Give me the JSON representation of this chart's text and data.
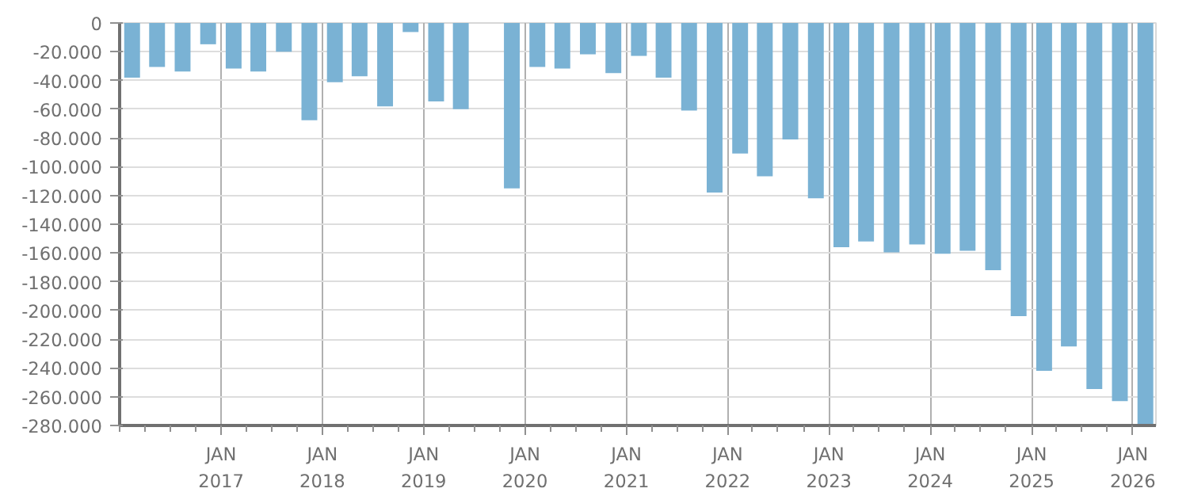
{
  "chart_data": {
    "type": "bar",
    "x": [
      "2016-02-15",
      "2016-05-15",
      "2016-08-15",
      "2016-11-15",
      "2017-02-15",
      "2017-05-15",
      "2017-08-15",
      "2017-11-15",
      "2018-02-15",
      "2018-05-15",
      "2018-08-15",
      "2018-11-15",
      "2019-02-15",
      "2019-05-15",
      "2019-08-15",
      "2019-11-15",
      "2020-02-15",
      "2020-05-15",
      "2020-08-15",
      "2020-11-15",
      "2021-02-15",
      "2021-05-15",
      "2021-08-15",
      "2021-11-15",
      "2022-02-15",
      "2022-05-15",
      "2022-08-15",
      "2022-11-15",
      "2023-02-15",
      "2023-05-15",
      "2023-08-15",
      "2023-11-15",
      "2024-02-15",
      "2024-05-15",
      "2024-08-15",
      "2024-11-15",
      "2025-02-15",
      "2025-05-15",
      "2025-08-15",
      "2025-11-15",
      "2026-02-15"
    ],
    "series": [
      {
        "color": "#7ab2d4",
        "values": [
          -38000,
          -30600,
          -33800,
          -14800,
          -31700,
          -33800,
          -20000,
          -67600,
          -41200,
          -37000,
          -58000,
          -6300,
          -54600,
          -59900,
          null,
          -115000,
          -30600,
          -31700,
          -21800,
          -34900,
          -22900,
          -38000,
          -60900,
          -118000,
          -90800,
          -106700,
          -81000,
          -122000,
          -156000,
          -152000,
          -159500,
          -154000,
          -160600,
          -158500,
          -172000,
          -204000,
          -242000,
          -225000,
          -254600,
          -263000,
          -280000
        ]
      }
    ],
    "xlim": [
      "2016-01-01",
      "2026-03-25"
    ],
    "xticks": [
      {
        "value": "2017-01-01",
        "label": "JAN\n2017"
      },
      {
        "value": "2018-01-01",
        "label": "JAN\n2018"
      },
      {
        "value": "2019-01-01",
        "label": "JAN\n2019"
      },
      {
        "value": "2020-01-01",
        "label": "JAN\n2020"
      },
      {
        "value": "2021-01-01",
        "label": "JAN\n2021"
      },
      {
        "value": "2022-01-01",
        "label": "JAN\n2022"
      },
      {
        "value": "2023-01-01",
        "label": "JAN\n2023"
      },
      {
        "value": "2024-01-01",
        "label": "JAN\n2024"
      },
      {
        "value": "2025-01-01",
        "label": "JAN\n2025"
      },
      {
        "value": "2026-01-01",
        "label": "JAN\n2026"
      }
    ],
    "ylim": [
      -280000,
      0
    ],
    "yticks": [
      {
        "value": 0,
        "label": "0"
      },
      {
        "value": -20000,
        "label": "-20.000"
      },
      {
        "value": -40000,
        "label": "-40.000"
      },
      {
        "value": -60000,
        "label": "-60.000"
      },
      {
        "value": -80000,
        "label": "-80.000"
      },
      {
        "value": -100000,
        "label": "-100.000"
      },
      {
        "value": -120000,
        "label": "-120.000"
      },
      {
        "value": -140000,
        "label": "-140.000"
      },
      {
        "value": -160000,
        "label": "-160.000"
      },
      {
        "value": -180000,
        "label": "-180.000"
      },
      {
        "value": -200000,
        "label": "-200.000"
      },
      {
        "value": -220000,
        "label": "-220.000"
      },
      {
        "value": -240000,
        "label": "-240.000"
      },
      {
        "value": -260000,
        "label": "-260.000"
      },
      {
        "value": -280000,
        "label": "-280.000"
      }
    ],
    "grid": true
  }
}
